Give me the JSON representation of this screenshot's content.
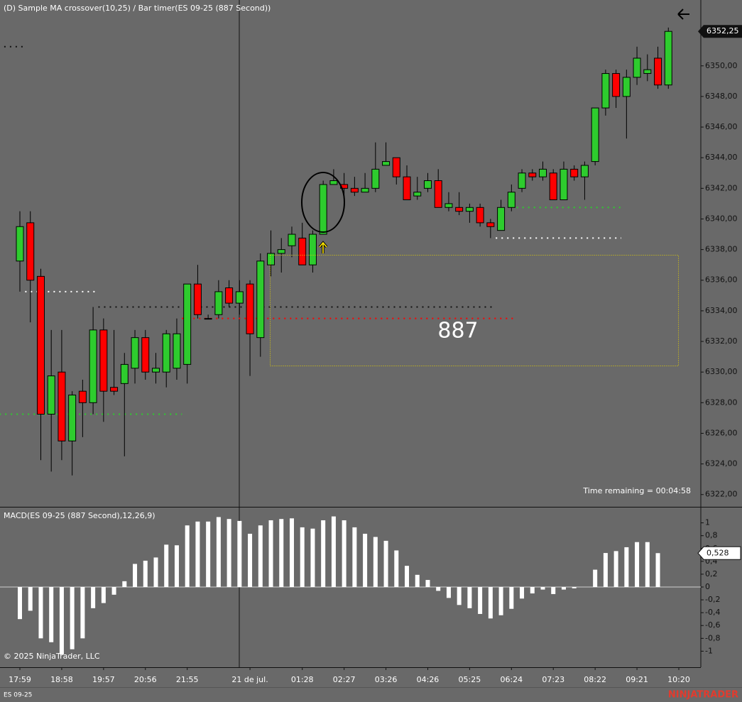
{
  "chart_data": [
    {
      "type": "candlestick",
      "title": "(D) Sample MA crossover(10,25) / Bar timer(ES 09-25 (887 Second))",
      "categories": [
        "17:59",
        null,
        null,
        null,
        "18:58",
        null,
        null,
        null,
        "19:57",
        null,
        null,
        null,
        "20:56",
        null,
        null,
        null,
        "21:55",
        null,
        null,
        null,
        null,
        null,
        "21 de jul.",
        null,
        null,
        null,
        null,
        "01:28",
        null,
        null,
        null,
        "02:27",
        null,
        null,
        null,
        "03:26",
        null,
        null,
        null,
        "04:26",
        null,
        null,
        null,
        "05:25",
        null,
        null,
        null,
        "06:24",
        null,
        null,
        null,
        "07:23",
        null,
        null,
        null,
        "08:22",
        null,
        null,
        null,
        "09:21",
        null,
        null,
        null,
        "10:20"
      ],
      "open": [
        6337.25,
        6339.75,
        6336.25,
        6327.25,
        6330.0,
        6325.5,
        6328.75,
        6328.0,
        6332.75,
        6329.0,
        6329.25,
        6330.25,
        6332.25,
        6330.0,
        6330.0,
        6330.25,
        6330.5,
        6335.75,
        6333.5,
        6333.75,
        6335.5,
        6334.5,
        6335.75,
        6332.25,
        6337.0,
        6337.75,
        6338.25,
        6338.75,
        6337.0,
        6339.0,
        6342.25,
        6342.25,
        6342.0,
        6341.75,
        6342.0,
        6343.5,
        6344.0,
        6342.75,
        6341.5,
        6342.0,
        6342.5,
        6340.75,
        6340.75,
        6340.5,
        6340.75,
        6339.75,
        6339.25,
        6340.75,
        6342.0,
        6343.0,
        6342.75,
        6343.0,
        6341.25,
        6343.25,
        6342.75,
        6343.75,
        6347.25,
        6349.5,
        6348.0,
        6349.25,
        6349.5,
        6350.5,
        6348.75,
        null
      ],
      "high": [
        6340.5,
        6340.5,
        6336.75,
        6332.75,
        6332.75,
        6328.75,
        6329.5,
        6334.25,
        6333.5,
        6332.75,
        6331.25,
        6332.75,
        6332.75,
        6331.25,
        6332.75,
        6333.5,
        6335.75,
        6337.0,
        6333.75,
        6336.0,
        6336.0,
        6336.0,
        6336.0,
        6337.75,
        6339.25,
        6338.75,
        6339.5,
        6339.75,
        6339.25,
        6342.5,
        6343.25,
        6343.0,
        6342.75,
        6343.0,
        6345.0,
        6345.0,
        6344.0,
        6343.5,
        6342.75,
        6343.0,
        6343.25,
        6341.75,
        6341.75,
        6341.0,
        6341.0,
        6340.0,
        6341.25,
        6342.25,
        6343.25,
        6343.25,
        6343.75,
        6343.25,
        6343.75,
        6343.5,
        6343.75,
        6347.25,
        6349.75,
        6349.75,
        6349.75,
        6351.25,
        6350.75,
        6351.25,
        6352.5,
        null
      ],
      "low": [
        6335.25,
        6333.25,
        6324.25,
        6323.5,
        6324.25,
        6323.25,
        6325.75,
        6327.25,
        6326.75,
        6328.5,
        6324.5,
        6329.25,
        6329.5,
        6329.25,
        6329.0,
        6329.5,
        6329.25,
        6333.5,
        6333.5,
        6333.5,
        6334.25,
        6333.75,
        6329.75,
        6331.0,
        6336.25,
        6336.5,
        6337.5,
        6337.0,
        6336.5,
        6339.0,
        6342.25,
        6341.5,
        6341.5,
        6341.75,
        6341.75,
        6343.5,
        6342.25,
        6341.25,
        6341.25,
        6341.75,
        6340.75,
        6340.5,
        6340.25,
        6339.75,
        6339.5,
        6338.75,
        6339.25,
        6340.5,
        6341.75,
        6342.5,
        6342.5,
        6341.25,
        6341.25,
        6342.5,
        6341.25,
        6343.5,
        6346.75,
        6347.25,
        6345.25,
        6348.75,
        6349.0,
        6348.5,
        6348.5,
        null
      ],
      "close": [
        6339.5,
        6336.0,
        6327.25,
        6329.75,
        6325.5,
        6328.5,
        6328.0,
        6332.75,
        6328.75,
        6328.75,
        6330.5,
        6332.25,
        6330.0,
        6330.25,
        6332.5,
        6332.5,
        6335.75,
        6333.75,
        6333.5,
        6335.25,
        6334.5,
        6335.25,
        6332.5,
        6337.25,
        6337.75,
        6338.0,
        6339.0,
        6337.0,
        6339.0,
        6342.25,
        6342.5,
        6342.0,
        6341.75,
        6342.0,
        6343.25,
        6343.75,
        6342.75,
        6341.25,
        6341.75,
        6342.5,
        6340.75,
        6341.0,
        6340.5,
        6340.75,
        6339.75,
        6339.5,
        6340.75,
        6341.75,
        6343.0,
        6342.75,
        6343.25,
        6341.25,
        6343.25,
        6342.75,
        6343.5,
        6347.25,
        6349.5,
        6348.0,
        6349.25,
        6350.5,
        6349.75,
        6348.75,
        6352.25,
        null
      ],
      "up_color": "#2ecc2e",
      "down_color": "#ff0000",
      "ylim": [
        6321.2,
        6354.3
      ],
      "yticks": [
        {
          "value": 6322,
          "label": "6322,00"
        },
        {
          "value": 6324,
          "label": "6324,00"
        },
        {
          "value": 6326,
          "label": "6326,00"
        },
        {
          "value": 6328,
          "label": "6328,00"
        },
        {
          "value": 6330,
          "label": "6330,00"
        },
        {
          "value": 6332,
          "label": "6332,00"
        },
        {
          "value": 6334,
          "label": "6334,00"
        },
        {
          "value": 6336,
          "label": "6336,00"
        },
        {
          "value": 6338,
          "label": "6338,00"
        },
        {
          "value": 6340,
          "label": "6340,00"
        },
        {
          "value": 6342,
          "label": "6342,00"
        },
        {
          "value": 6344,
          "label": "6344,00"
        },
        {
          "value": 6346,
          "label": "6346,00"
        },
        {
          "value": 6348,
          "label": "6348,00"
        },
        {
          "value": 6350,
          "label": "6350,00"
        }
      ],
      "last_price": {
        "value": 6352.25,
        "label": "6352,25"
      },
      "levels": [
        {
          "value": 6351.25,
          "color": "#111111",
          "from": -1,
          "to": 0
        },
        {
          "value": 6335.25,
          "color": "#ffffff",
          "from": 1,
          "to": 7
        },
        {
          "value": 6334.25,
          "color": "#111111",
          "from": 8,
          "to": 45
        },
        {
          "value": 6333.5,
          "color": "#ff0000",
          "from": 16,
          "to": 47
        },
        {
          "value": 6327.25,
          "color": "#2ecc2e",
          "from": -2,
          "to": 15
        },
        {
          "value": 6340.75,
          "color": "#2ecc2e",
          "from": 48,
          "to": 57
        },
        {
          "value": 6338.75,
          "color": "#ffffff",
          "from": 46,
          "to": 57
        }
      ],
      "bar_timer_count": "887",
      "time_remaining": "Time remaining = 00:04:58"
    },
    {
      "type": "bar",
      "title": "MACD(ES 09-25 (887 Second),12,26,9)",
      "values": [
        -0.5,
        -0.37,
        -0.8,
        -0.86,
        -1.05,
        -0.97,
        -0.8,
        -0.33,
        -0.25,
        -0.12,
        0.09,
        0.36,
        0.41,
        0.46,
        0.66,
        0.65,
        0.96,
        1.02,
        1.02,
        1.09,
        1.06,
        1.03,
        0.83,
        0.96,
        1.04,
        1.06,
        1.07,
        0.93,
        0.91,
        1.04,
        1.1,
        1.04,
        0.93,
        0.83,
        0.78,
        0.72,
        0.57,
        0.33,
        0.19,
        0.11,
        -0.06,
        -0.17,
        -0.28,
        -0.33,
        -0.42,
        -0.49,
        -0.44,
        -0.34,
        -0.18,
        -0.1,
        -0.04,
        -0.11,
        -0.04,
        -0.02,
        0,
        0.27,
        0.53,
        0.56,
        0.62,
        0.7,
        0.7,
        0.528,
        null,
        null
      ],
      "color": "#ffffff",
      "ylim": [
        -1.25,
        1.25
      ],
      "yticks": [
        1,
        {
          "value": 0.8,
          "label": "0,8"
        },
        {
          "value": 0.6,
          "label": "0,6"
        },
        {
          "value": 0.4,
          "label": "0,4"
        },
        {
          "value": 0.2,
          "label": "0,2"
        },
        0,
        {
          "value": -0.2,
          "label": "-0,2"
        },
        {
          "value": -0.4,
          "label": "-0,4"
        },
        {
          "value": -0.6,
          "label": "-0,6"
        },
        {
          "value": -0.8,
          "label": "-0,8"
        },
        -1
      ],
      "last_value": {
        "value": 0.528,
        "label": "0,528"
      },
      "copyright": "© 2025 NinjaTrader, LLC"
    }
  ],
  "footer": {
    "instrument": "ES 09-25",
    "brand": "NINJATRADER"
  }
}
